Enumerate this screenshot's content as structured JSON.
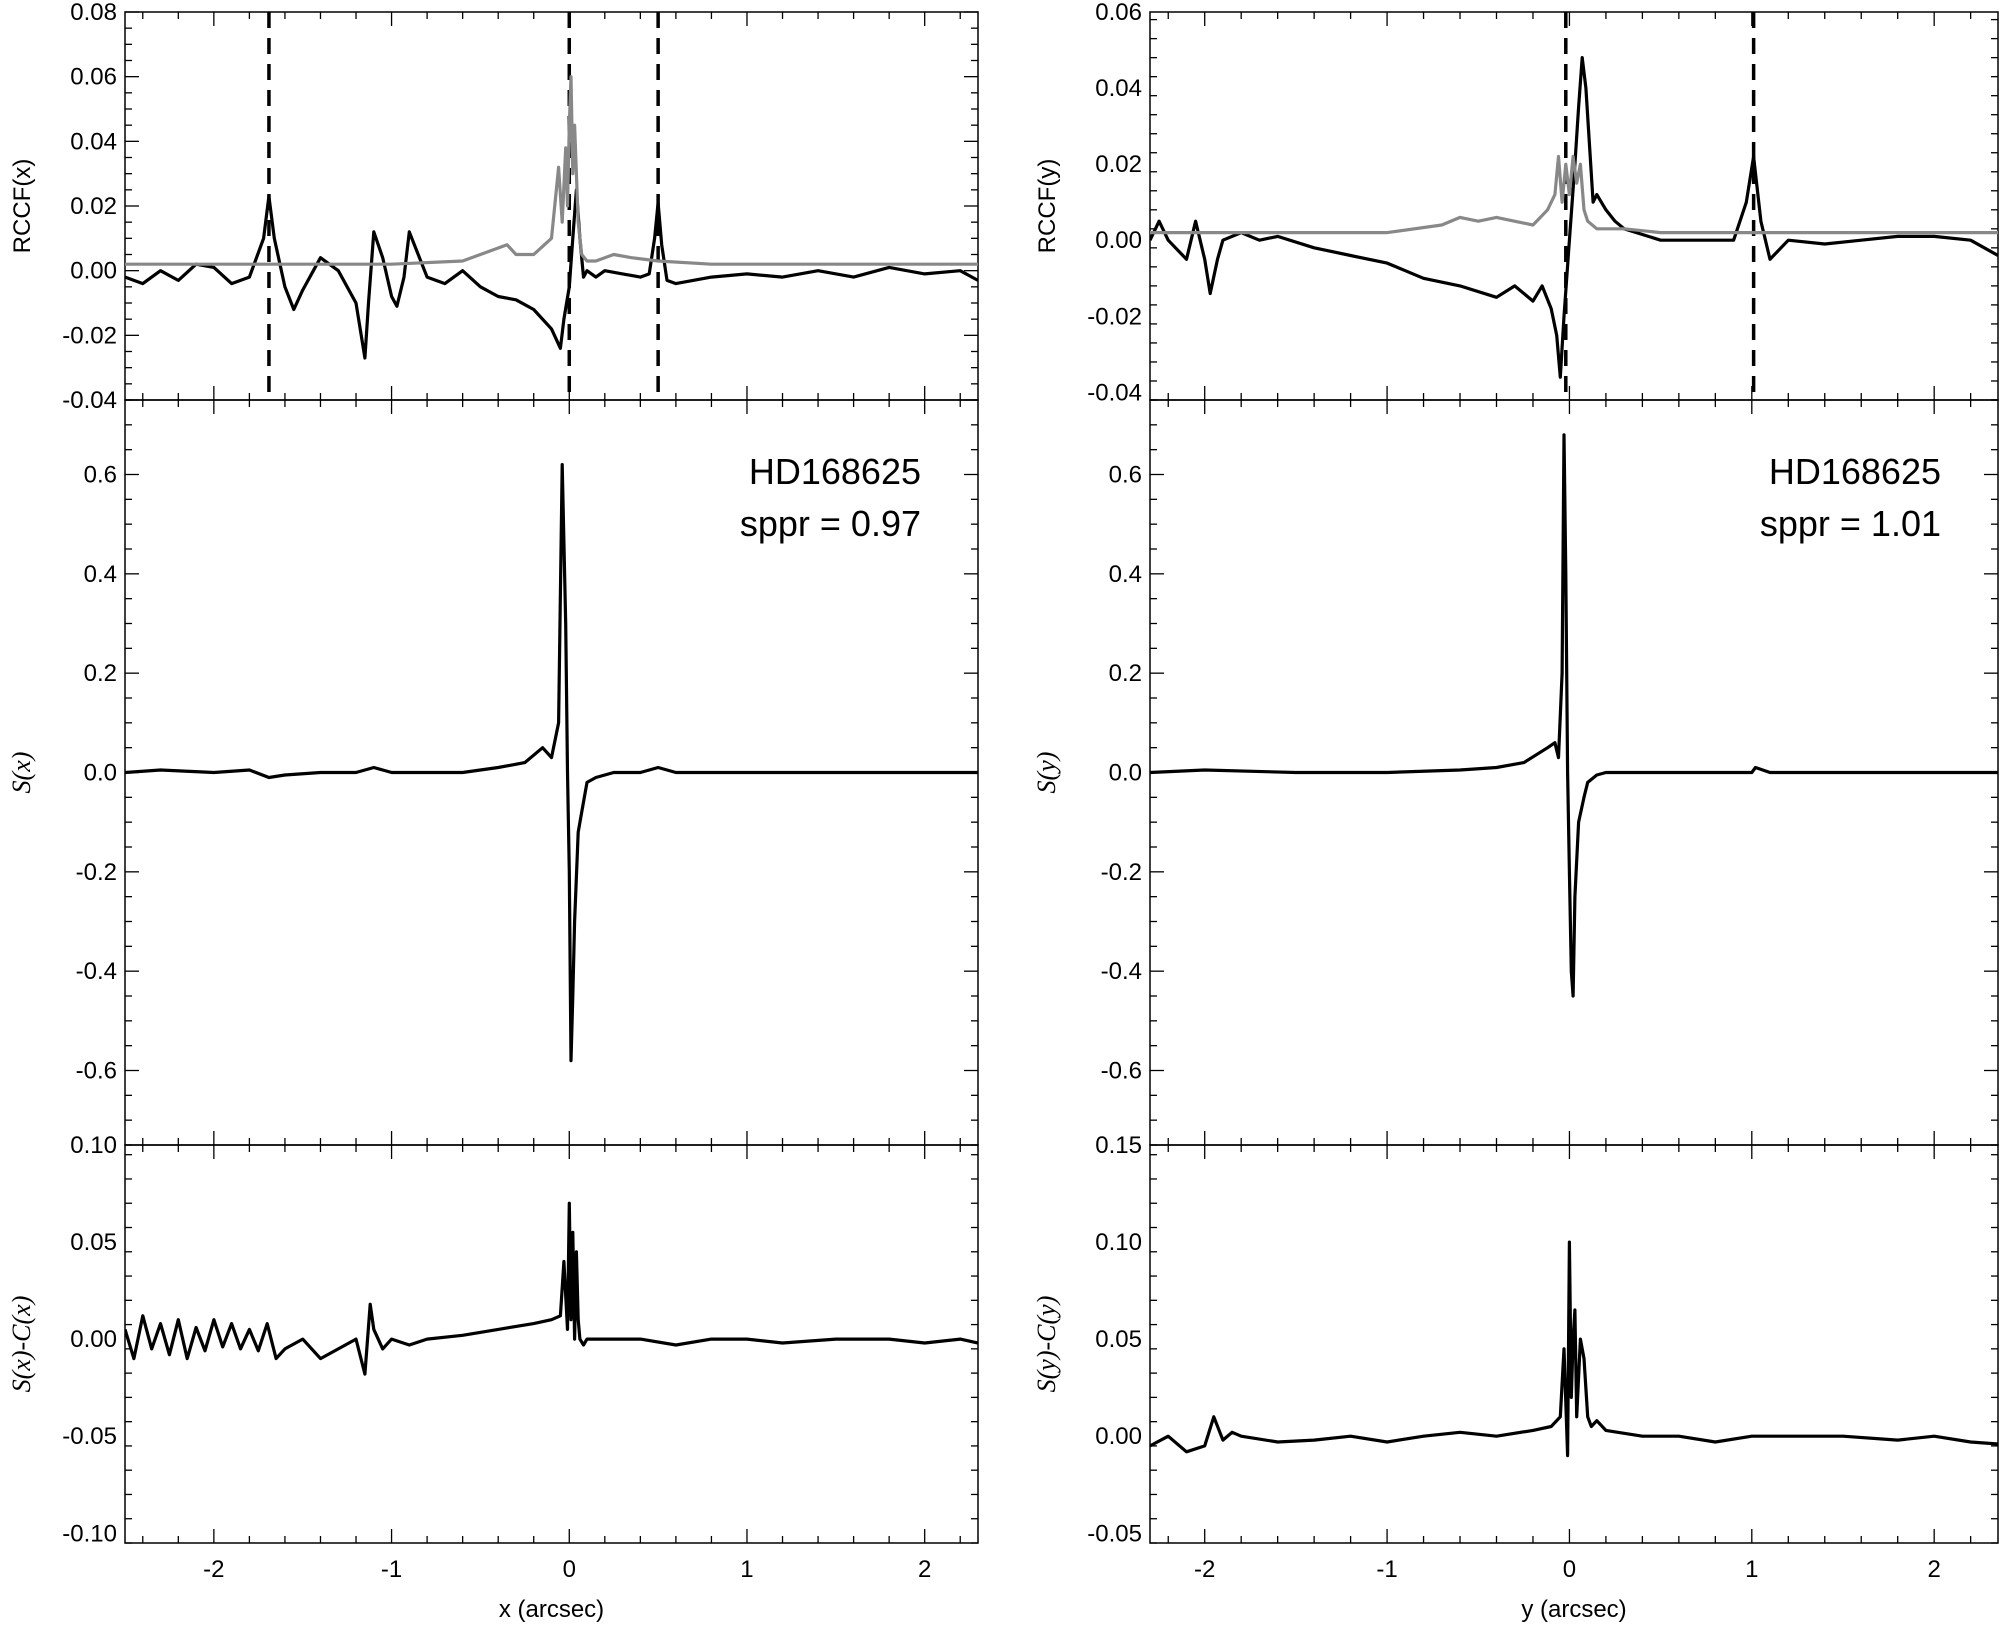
{
  "chart_data": [
    {
      "type": "line",
      "panel": "top-left",
      "ylabel": "RCCF(x)",
      "xlim": [
        -2.5,
        2.3
      ],
      "ylim": [
        -0.04,
        0.08
      ],
      "yticks": [
        -0.04,
        -0.02,
        0.0,
        0.02,
        0.04,
        0.06,
        0.08
      ],
      "ytick_labels": [
        "-0.04",
        "-0.02",
        "0.00",
        "0.02",
        "0.04",
        "0.06",
        "0.08"
      ],
      "vlines": [
        -1.69,
        0.0,
        0.5
      ],
      "series": [
        {
          "color": "#000000",
          "x": [
            -2.5,
            -2.4,
            -2.3,
            -2.2,
            -2.1,
            -2.0,
            -1.9,
            -1.8,
            -1.72,
            -1.69,
            -1.66,
            -1.6,
            -1.55,
            -1.5,
            -1.4,
            -1.3,
            -1.2,
            -1.15,
            -1.13,
            -1.1,
            -1.05,
            -1.0,
            -0.97,
            -0.93,
            -0.9,
            -0.8,
            -0.7,
            -0.6,
            -0.5,
            -0.4,
            -0.3,
            -0.2,
            -0.1,
            -0.05,
            -0.03,
            0.0,
            0.02,
            0.04,
            0.06,
            0.08,
            0.1,
            0.15,
            0.2,
            0.3,
            0.4,
            0.45,
            0.48,
            0.5,
            0.52,
            0.55,
            0.6,
            0.8,
            1.0,
            1.2,
            1.4,
            1.6,
            1.8,
            2.0,
            2.2,
            2.3
          ],
          "y": [
            -0.002,
            -0.004,
            0.0,
            -0.003,
            0.002,
            0.001,
            -0.004,
            -0.002,
            0.01,
            0.023,
            0.01,
            -0.005,
            -0.012,
            -0.006,
            0.004,
            0.0,
            -0.01,
            -0.027,
            -0.01,
            0.012,
            0.004,
            -0.008,
            -0.011,
            -0.002,
            0.012,
            -0.002,
            -0.004,
            0.0,
            -0.005,
            -0.008,
            -0.009,
            -0.012,
            -0.018,
            -0.024,
            -0.015,
            -0.005,
            0.01,
            0.025,
            0.01,
            -0.002,
            0.0,
            -0.002,
            0.0,
            -0.001,
            -0.002,
            -0.001,
            0.01,
            0.021,
            0.008,
            -0.003,
            -0.004,
            -0.002,
            -0.001,
            -0.002,
            0.0,
            -0.002,
            0.001,
            -0.001,
            0.0,
            -0.003
          ]
        },
        {
          "color": "#888888",
          "x": [
            -2.5,
            -1.5,
            -1.0,
            -0.6,
            -0.5,
            -0.35,
            -0.3,
            -0.2,
            -0.1,
            -0.06,
            -0.04,
            -0.02,
            -0.01,
            0.0,
            0.01,
            0.02,
            0.03,
            0.05,
            0.07,
            0.1,
            0.15,
            0.25,
            0.35,
            0.5,
            0.8,
            1.0,
            1.5,
            2.3
          ],
          "y": [
            0.002,
            0.002,
            0.002,
            0.003,
            0.005,
            0.008,
            0.005,
            0.005,
            0.01,
            0.032,
            0.015,
            0.038,
            0.02,
            0.045,
            0.06,
            0.03,
            0.045,
            0.015,
            0.005,
            0.003,
            0.003,
            0.005,
            0.004,
            0.003,
            0.002,
            0.002,
            0.002,
            0.002
          ]
        }
      ]
    },
    {
      "type": "line",
      "panel": "middle-left",
      "ylabel": "S(x)",
      "xlim": [
        -2.5,
        2.3
      ],
      "ylim": [
        -0.75,
        0.75
      ],
      "yticks": [
        -0.6,
        -0.4,
        -0.2,
        0.0,
        0.2,
        0.4,
        0.6
      ],
      "ytick_labels": [
        "-0.6",
        "-0.4",
        "-0.2",
        "0.0",
        "0.2",
        "0.4",
        "0.6"
      ],
      "annotations": [
        "HD168625",
        "sppr = 0.97"
      ],
      "series": [
        {
          "color": "#000000",
          "x": [
            -2.5,
            -2.3,
            -2.0,
            -1.8,
            -1.69,
            -1.6,
            -1.4,
            -1.2,
            -1.1,
            -1.0,
            -0.6,
            -0.4,
            -0.25,
            -0.15,
            -0.1,
            -0.06,
            -0.04,
            -0.02,
            -0.01,
            0.0,
            0.01,
            0.02,
            0.03,
            0.05,
            0.07,
            0.1,
            0.15,
            0.25,
            0.4,
            0.5,
            0.6,
            1.0,
            1.5,
            2.0,
            2.3
          ],
          "y": [
            0.0,
            0.005,
            0.0,
            0.005,
            -0.01,
            -0.005,
            0.0,
            0.0,
            0.01,
            0.0,
            0.0,
            0.01,
            0.02,
            0.05,
            0.03,
            0.1,
            0.62,
            0.3,
            0.0,
            -0.2,
            -0.58,
            -0.45,
            -0.3,
            -0.12,
            -0.08,
            -0.02,
            -0.01,
            0.0,
            0.0,
            0.01,
            0.0,
            0.0,
            0.0,
            0.0,
            0.0
          ]
        }
      ]
    },
    {
      "type": "line",
      "panel": "bottom-left",
      "ylabel": "S(x)-C(x)",
      "xlabel": "x (arcsec)",
      "xlim": [
        -2.5,
        2.3
      ],
      "ylim": [
        -0.105,
        0.1
      ],
      "xticks": [
        -2,
        -1,
        0,
        1,
        2
      ],
      "xtick_labels": [
        "-2",
        "-1",
        "0",
        "1",
        "2"
      ],
      "yticks": [
        -0.1,
        -0.05,
        0.0,
        0.05,
        0.1
      ],
      "ytick_labels": [
        "-0.10",
        "-0.05",
        "0.00",
        "0.05",
        "0.10"
      ],
      "series": [
        {
          "color": "#000000",
          "x": [
            -2.5,
            -2.45,
            -2.4,
            -2.35,
            -2.3,
            -2.25,
            -2.2,
            -2.15,
            -2.1,
            -2.05,
            -2.0,
            -1.95,
            -1.9,
            -1.85,
            -1.8,
            -1.75,
            -1.7,
            -1.65,
            -1.6,
            -1.5,
            -1.4,
            -1.3,
            -1.2,
            -1.15,
            -1.12,
            -1.1,
            -1.05,
            -1.0,
            -0.9,
            -0.8,
            -0.6,
            -0.4,
            -0.2,
            -0.1,
            -0.05,
            -0.03,
            -0.01,
            0.0,
            0.01,
            0.02,
            0.03,
            0.04,
            0.05,
            0.06,
            0.08,
            0.1,
            0.2,
            0.4,
            0.6,
            0.8,
            1.0,
            1.2,
            1.5,
            1.8,
            2.0,
            2.2,
            2.3
          ],
          "y": [
            0.005,
            -0.01,
            0.012,
            -0.005,
            0.008,
            -0.008,
            0.01,
            -0.01,
            0.006,
            -0.006,
            0.01,
            -0.004,
            0.008,
            -0.005,
            0.005,
            -0.006,
            0.008,
            -0.01,
            -0.005,
            0.0,
            -0.01,
            -0.005,
            0.0,
            -0.018,
            0.018,
            0.005,
            -0.005,
            0.0,
            -0.003,
            0.0,
            0.002,
            0.005,
            0.008,
            0.01,
            0.012,
            0.04,
            0.005,
            0.07,
            0.01,
            0.055,
            0.0,
            0.045,
            0.01,
            0.0,
            -0.003,
            0.0,
            0.0,
            0.0,
            -0.003,
            0.0,
            0.0,
            -0.002,
            0.0,
            0.0,
            -0.002,
            0.0,
            -0.002
          ]
        }
      ]
    },
    {
      "type": "line",
      "panel": "top-right",
      "ylabel": "RCCF(y)",
      "xlim": [
        -2.3,
        2.35
      ],
      "ylim": [
        -0.042,
        0.06
      ],
      "yticks": [
        -0.04,
        -0.02,
        0.0,
        0.02,
        0.04,
        0.06
      ],
      "ytick_labels": [
        "-0.04",
        "-0.02",
        "0.00",
        "0.02",
        "0.04",
        "0.06"
      ],
      "vlines": [
        -0.02,
        1.01
      ],
      "series": [
        {
          "color": "#000000",
          "x": [
            -2.3,
            -2.25,
            -2.2,
            -2.1,
            -2.05,
            -2.0,
            -1.97,
            -1.93,
            -1.9,
            -1.8,
            -1.7,
            -1.6,
            -1.4,
            -1.2,
            -1.0,
            -0.9,
            -0.8,
            -0.6,
            -0.4,
            -0.3,
            -0.2,
            -0.15,
            -0.1,
            -0.07,
            -0.05,
            -0.03,
            0.0,
            0.03,
            0.05,
            0.07,
            0.09,
            0.11,
            0.13,
            0.15,
            0.2,
            0.25,
            0.3,
            0.5,
            0.7,
            0.9,
            0.97,
            1.01,
            1.05,
            1.1,
            1.2,
            1.4,
            1.6,
            1.8,
            2.0,
            2.2,
            2.35
          ],
          "y": [
            0.0,
            0.005,
            0.0,
            -0.005,
            0.005,
            -0.005,
            -0.014,
            -0.005,
            0.0,
            0.002,
            0.0,
            0.001,
            -0.002,
            -0.004,
            -0.006,
            -0.008,
            -0.01,
            -0.012,
            -0.015,
            -0.012,
            -0.016,
            -0.012,
            -0.018,
            -0.025,
            -0.036,
            -0.02,
            0.0,
            0.02,
            0.035,
            0.048,
            0.04,
            0.025,
            0.01,
            0.012,
            0.008,
            0.005,
            0.003,
            0.0,
            0.0,
            0.0,
            0.01,
            0.022,
            0.005,
            -0.005,
            0.0,
            -0.001,
            0.0,
            0.001,
            0.001,
            0.0,
            -0.004
          ]
        },
        {
          "color": "#888888",
          "x": [
            -2.3,
            -1.5,
            -1.0,
            -0.7,
            -0.6,
            -0.5,
            -0.4,
            -0.2,
            -0.12,
            -0.08,
            -0.06,
            -0.04,
            -0.02,
            0.0,
            0.02,
            0.04,
            0.06,
            0.08,
            0.1,
            0.15,
            0.2,
            0.3,
            0.5,
            0.8,
            1.0,
            1.5,
            2.35
          ],
          "y": [
            0.002,
            0.002,
            0.002,
            0.004,
            0.006,
            0.005,
            0.006,
            0.004,
            0.008,
            0.012,
            0.022,
            0.01,
            0.02,
            0.012,
            0.022,
            0.015,
            0.02,
            0.008,
            0.005,
            0.003,
            0.003,
            0.003,
            0.002,
            0.002,
            0.002,
            0.002,
            0.002
          ]
        }
      ]
    },
    {
      "type": "line",
      "panel": "middle-right",
      "ylabel": "S(y)",
      "xlim": [
        -2.3,
        2.35
      ],
      "ylim": [
        -0.75,
        0.75
      ],
      "yticks": [
        -0.6,
        -0.4,
        -0.2,
        0.0,
        0.2,
        0.4,
        0.6
      ],
      "ytick_labels": [
        "-0.6",
        "-0.4",
        "-0.2",
        "0.0",
        "0.2",
        "0.4",
        "0.6"
      ],
      "annotations": [
        "HD168625",
        "sppr = 1.01"
      ],
      "series": [
        {
          "color": "#000000",
          "x": [
            -2.3,
            -2.0,
            -1.5,
            -1.0,
            -0.6,
            -0.4,
            -0.25,
            -0.12,
            -0.08,
            -0.06,
            -0.04,
            -0.03,
            -0.02,
            -0.01,
            0.0,
            0.01,
            0.02,
            0.03,
            0.05,
            0.08,
            0.1,
            0.15,
            0.2,
            0.3,
            0.5,
            0.8,
            1.0,
            1.02,
            1.1,
            1.5,
            2.0,
            2.35
          ],
          "y": [
            0.0,
            0.005,
            0.0,
            0.0,
            0.005,
            0.01,
            0.02,
            0.05,
            0.06,
            0.03,
            0.2,
            0.68,
            0.4,
            0.0,
            -0.2,
            -0.4,
            -0.45,
            -0.25,
            -0.1,
            -0.05,
            -0.02,
            -0.005,
            0.0,
            0.0,
            0.0,
            0.0,
            0.0,
            0.01,
            0.0,
            0.0,
            0.0,
            0.0
          ]
        }
      ]
    },
    {
      "type": "line",
      "panel": "bottom-right",
      "ylabel": "S(y)-C(y)",
      "xlabel": "y (arcsec)",
      "xlim": [
        -2.3,
        2.35
      ],
      "ylim": [
        -0.055,
        0.15
      ],
      "xticks": [
        -2,
        -1,
        0,
        1,
        2
      ],
      "xtick_labels": [
        "-2",
        "-1",
        "0",
        "1",
        "2"
      ],
      "yticks": [
        -0.05,
        0.0,
        0.05,
        0.1,
        0.15
      ],
      "ytick_labels": [
        "-0.05",
        "0.00",
        "0.05",
        "0.10",
        "0.15"
      ],
      "series": [
        {
          "color": "#000000",
          "x": [
            -2.3,
            -2.2,
            -2.1,
            -2.0,
            -1.95,
            -1.9,
            -1.85,
            -1.8,
            -1.6,
            -1.4,
            -1.2,
            -1.0,
            -0.8,
            -0.6,
            -0.4,
            -0.2,
            -0.1,
            -0.05,
            -0.03,
            -0.01,
            0.0,
            0.01,
            0.02,
            0.03,
            0.04,
            0.06,
            0.08,
            0.1,
            0.12,
            0.15,
            0.2,
            0.4,
            0.6,
            0.8,
            1.0,
            1.2,
            1.5,
            1.8,
            2.0,
            2.2,
            2.35
          ],
          "y": [
            -0.005,
            0.0,
            -0.008,
            -0.005,
            0.01,
            -0.002,
            0.002,
            0.0,
            -0.003,
            -0.002,
            0.0,
            -0.003,
            0.0,
            0.002,
            0.0,
            0.003,
            0.005,
            0.01,
            0.045,
            -0.01,
            0.1,
            0.02,
            0.05,
            0.065,
            0.01,
            0.05,
            0.04,
            0.01,
            0.005,
            0.008,
            0.003,
            0.0,
            0.0,
            -0.003,
            0.0,
            0.0,
            0.0,
            -0.002,
            0.0,
            -0.003,
            -0.004
          ]
        }
      ]
    }
  ]
}
